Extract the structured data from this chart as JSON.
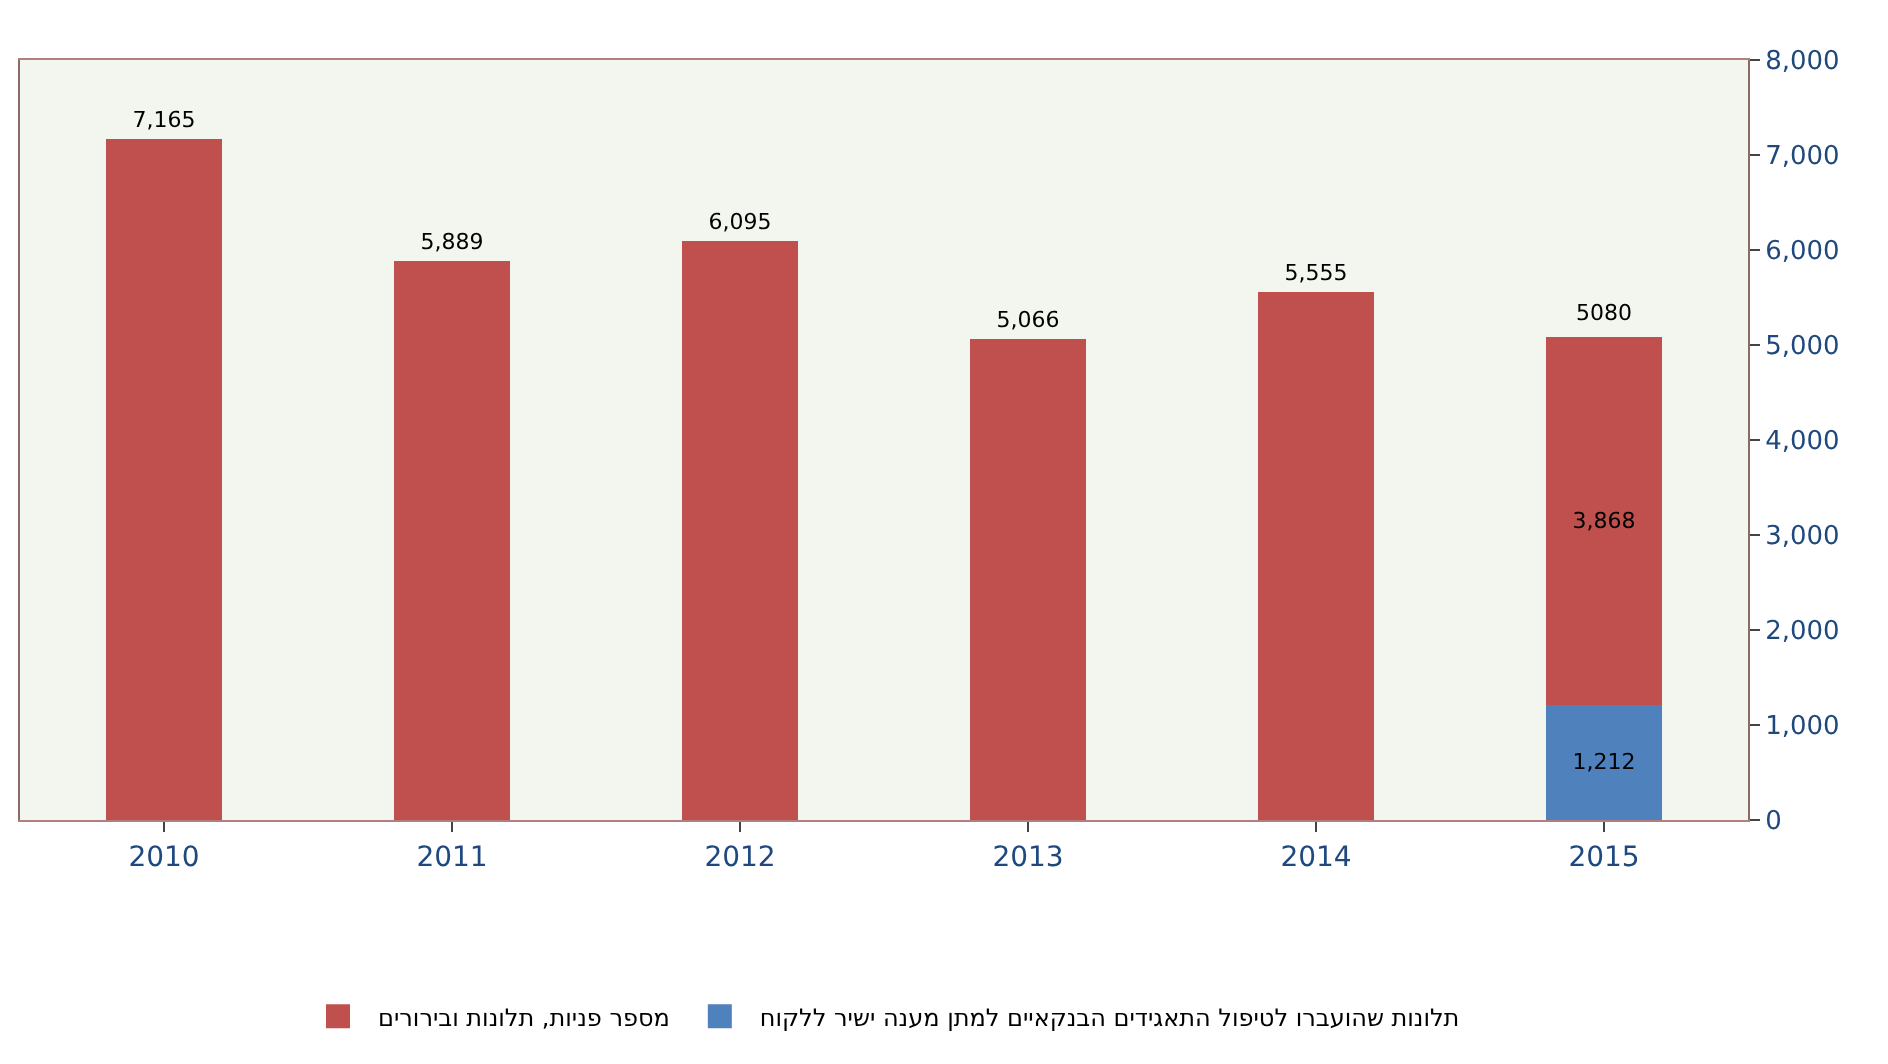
{
  "chart_data": {
    "type": "bar",
    "stacked": true,
    "categories": [
      "2010",
      "2011",
      "2012",
      "2013",
      "2014",
      "2015"
    ],
    "series": [
      {
        "name": "תלונות שהועברו לטיפול התאגידים הבנקאיים למתן מענה ישיר ללקוח",
        "color": "#4f81bd",
        "values": [
          null,
          null,
          null,
          null,
          null,
          1212
        ],
        "value_labels": [
          null,
          null,
          null,
          null,
          null,
          "1,212"
        ]
      },
      {
        "name": "מספר פניות, תלונות ובירורים",
        "color": "#c0504d",
        "values": [
          7165,
          5889,
          6095,
          5066,
          5555,
          3868
        ],
        "value_labels": [
          "7,165",
          "5,889",
          "6,095",
          "5,066",
          "5,555",
          "3,868"
        ]
      }
    ],
    "totals": [
      null,
      null,
      null,
      null,
      null,
      "5080"
    ],
    "ylim": [
      0,
      8000
    ],
    "yticks": [
      0,
      {
        "value": 1000,
        "label": "1,000"
      },
      {
        "value": 2000,
        "label": "2,000"
      },
      {
        "value": 3000,
        "label": "3,000"
      },
      {
        "value": 4000,
        "label": "4,000"
      },
      {
        "value": 5000,
        "label": "5,000"
      },
      {
        "value": 6000,
        "label": "6,000"
      },
      {
        "value": 7000,
        "label": "7,000"
      },
      {
        "value": 8000,
        "label": "8,000"
      }
    ],
    "grid": false,
    "legend": "bottom"
  }
}
